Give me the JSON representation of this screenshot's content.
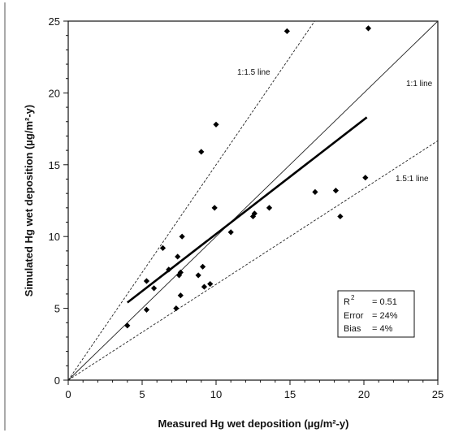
{
  "chart_data": {
    "type": "scatter",
    "xlabel": "Measured Hg wet deposition (µg/m²-y)",
    "ylabel": "Simulated Hg wet deposition (µg/m²-y)",
    "xlim": [
      0,
      25
    ],
    "ylim": [
      0,
      25
    ],
    "xticks": [
      "0",
      "5",
      "10",
      "15",
      "20",
      "25"
    ],
    "yticks": [
      "0",
      "5",
      "10",
      "15",
      "20",
      "25"
    ],
    "grid": false,
    "series": [
      {
        "type": "scatter",
        "marker": "diamond",
        "points": [
          {
            "x": 4.0,
            "y": 3.8
          },
          {
            "x": 5.3,
            "y": 6.9
          },
          {
            "x": 5.3,
            "y": 4.9
          },
          {
            "x": 5.8,
            "y": 6.4
          },
          {
            "x": 6.4,
            "y": 9.2
          },
          {
            "x": 6.8,
            "y": 7.7
          },
          {
            "x": 7.3,
            "y": 5.0
          },
          {
            "x": 7.4,
            "y": 8.6
          },
          {
            "x": 7.5,
            "y": 7.3
          },
          {
            "x": 7.6,
            "y": 5.9
          },
          {
            "x": 7.7,
            "y": 10.0
          },
          {
            "x": 7.6,
            "y": 7.5
          },
          {
            "x": 8.8,
            "y": 7.3
          },
          {
            "x": 9.1,
            "y": 7.9
          },
          {
            "x": 9.0,
            "y": 15.9
          },
          {
            "x": 9.2,
            "y": 6.5
          },
          {
            "x": 9.6,
            "y": 6.7
          },
          {
            "x": 9.9,
            "y": 12.0
          },
          {
            "x": 10.0,
            "y": 17.8
          },
          {
            "x": 11.0,
            "y": 10.3
          },
          {
            "x": 12.5,
            "y": 11.4
          },
          {
            "x": 12.6,
            "y": 11.6
          },
          {
            "x": 13.6,
            "y": 12.0
          },
          {
            "x": 14.8,
            "y": 24.3
          },
          {
            "x": 16.7,
            "y": 13.1
          },
          {
            "x": 18.1,
            "y": 13.2
          },
          {
            "x": 18.4,
            "y": 11.4
          },
          {
            "x": 20.1,
            "y": 14.1
          },
          {
            "x": 20.3,
            "y": 24.5
          }
        ]
      },
      {
        "type": "regression",
        "style": "solid-bold",
        "x": [
          4.0,
          20.2
        ],
        "y": [
          5.4,
          18.3
        ]
      },
      {
        "type": "reference",
        "name": "1:1 line",
        "style": "solid-thin",
        "x": [
          0,
          25
        ],
        "y": [
          0,
          25
        ]
      },
      {
        "type": "reference",
        "name": "1:1.5 line",
        "style": "dashed",
        "x": [
          0,
          16.67
        ],
        "y": [
          0,
          25
        ]
      },
      {
        "type": "reference",
        "name": "1.5:1 line",
        "style": "dashed",
        "x": [
          0,
          25
        ],
        "y": [
          0,
          16.67
        ]
      }
    ],
    "line_labels": {
      "one_to_onepointfive": "1:1.5 line",
      "one_to_one": "1:1 line",
      "onepointfive_to_one": "1.5:1 line"
    },
    "stats_box": {
      "r2_label": "R",
      "r2_sup": "2",
      "r2_value": "= 0.51",
      "error_label": "Error",
      "error_value": "= 24%",
      "bias_label": "Bias",
      "bias_value": "= 4%"
    }
  }
}
